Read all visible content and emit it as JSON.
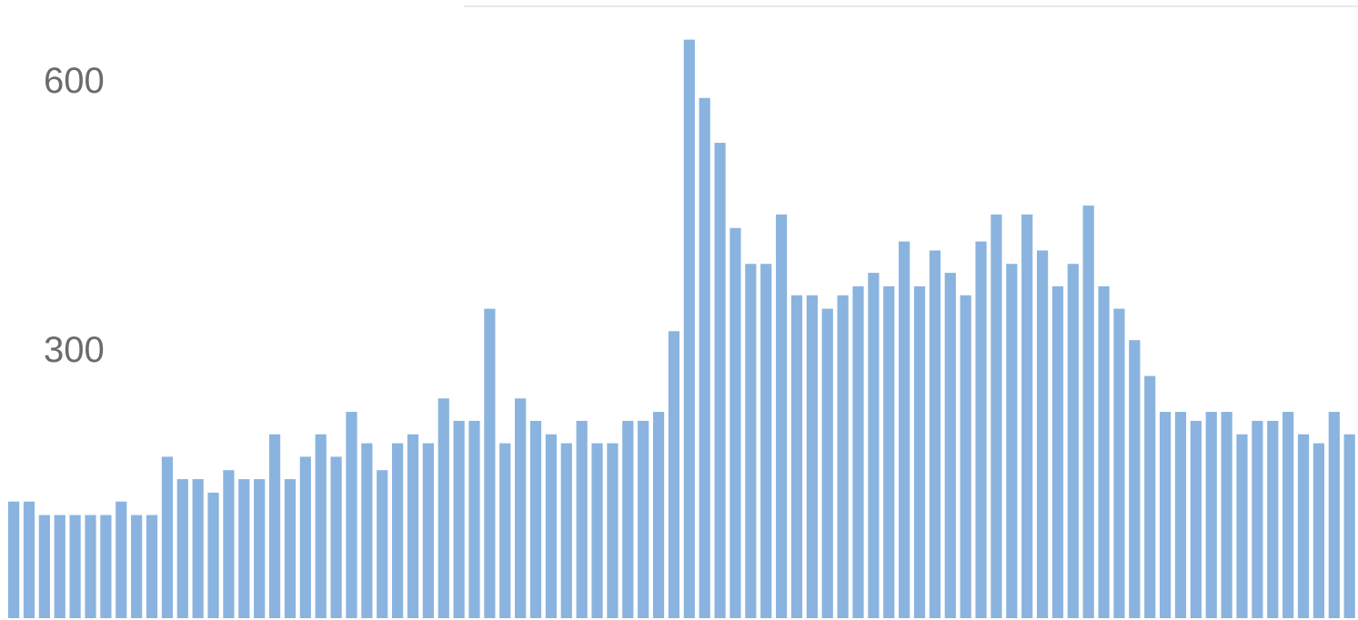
{
  "chart_data": {
    "type": "bar",
    "title": "",
    "xlabel": "",
    "ylabel": "",
    "ylim": [
      0,
      640
    ],
    "y_ticks": [
      {
        "value": 300,
        "label": "300"
      },
      {
        "value": 600,
        "label": "600"
      }
    ],
    "grid": false,
    "legend": "none",
    "bar_color": "#8ab4df",
    "tick_label_color": "#6b6b6b",
    "values": [
      130,
      130,
      115,
      115,
      115,
      115,
      115,
      130,
      115,
      115,
      180,
      155,
      155,
      140,
      165,
      155,
      155,
      205,
      155,
      180,
      205,
      180,
      230,
      195,
      165,
      195,
      205,
      195,
      245,
      220,
      220,
      345,
      195,
      245,
      220,
      205,
      195,
      220,
      195,
      195,
      220,
      220,
      230,
      320,
      645,
      580,
      530,
      435,
      395,
      395,
      450,
      360,
      360,
      345,
      360,
      370,
      385,
      370,
      420,
      370,
      410,
      385,
      360,
      420,
      450,
      395,
      450,
      410,
      370,
      395,
      460,
      370,
      345,
      310,
      270,
      230,
      230,
      220,
      230,
      230,
      205,
      220,
      220,
      230,
      205,
      195,
      230,
      205,
      220
    ]
  }
}
